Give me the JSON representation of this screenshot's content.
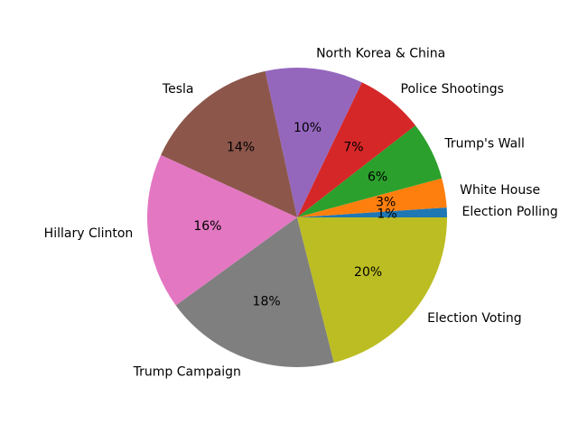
{
  "chart_data": {
    "type": "pie",
    "title": "",
    "start_angle_deg": 0,
    "direction": "counterclockwise",
    "slices": [
      {
        "label": "Election Polling",
        "value": 1,
        "pct_label": "1%",
        "color": "#1f77b4"
      },
      {
        "label": "White House",
        "value": 3,
        "pct_label": "3%",
        "color": "#ff7f0e"
      },
      {
        "label": "Trump's Wall",
        "value": 6,
        "pct_label": "6%",
        "color": "#2ca02c"
      },
      {
        "label": "Police Shootings",
        "value": 7,
        "pct_label": "7%",
        "color": "#d62728"
      },
      {
        "label": "North Korea & China",
        "value": 10,
        "pct_label": "10%",
        "color": "#9467bd"
      },
      {
        "label": "Tesla",
        "value": 14,
        "pct_label": "14%",
        "color": "#8c564b"
      },
      {
        "label": "Hillary Clinton",
        "value": 16,
        "pct_label": "16%",
        "color": "#e377c2"
      },
      {
        "label": "Trump Campaign",
        "value": 18,
        "pct_label": "18%",
        "color": "#7f7f7f"
      },
      {
        "label": "Election Voting",
        "value": 20,
        "pct_label": "20%",
        "color": "#bcbd22"
      }
    ]
  }
}
